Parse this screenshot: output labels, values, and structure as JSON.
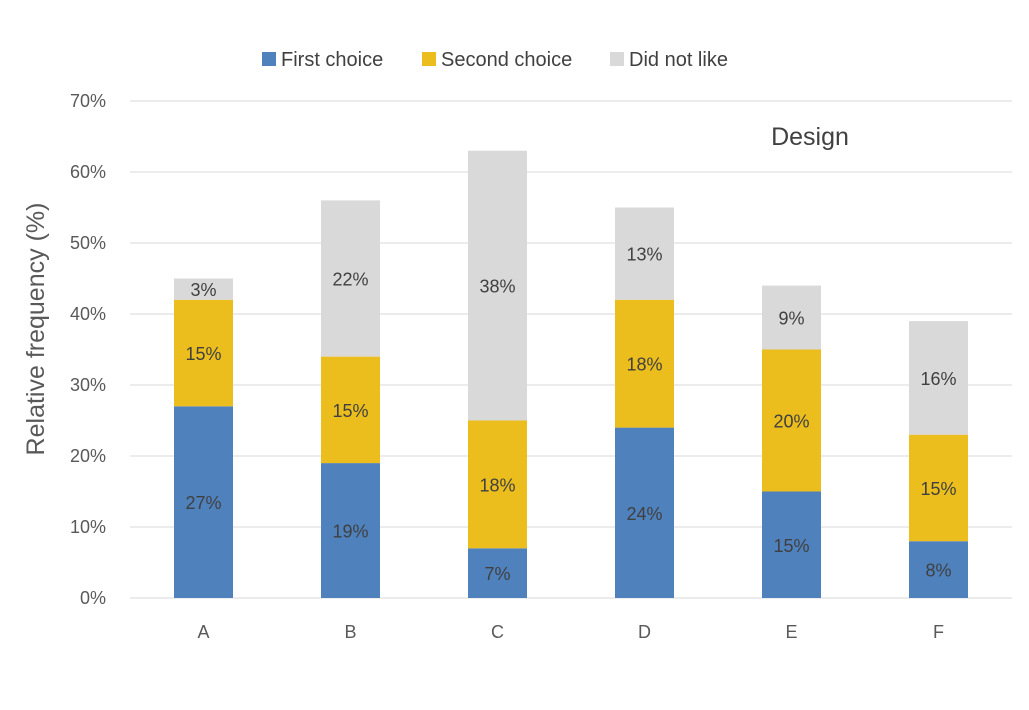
{
  "chart_data": {
    "type": "bar",
    "stacked": true,
    "categories": [
      "A",
      "B",
      "C",
      "D",
      "E",
      "F"
    ],
    "series": [
      {
        "name": "First choice",
        "values": [
          27,
          19,
          7,
          24,
          15,
          8
        ],
        "color": "#4F81BD",
        "label_color": "#404040"
      },
      {
        "name": "Second choice",
        "values": [
          15,
          15,
          18,
          18,
          20,
          15
        ],
        "color": "#EBBE1E",
        "label_color": "#404040"
      },
      {
        "name": "Did not like",
        "values": [
          3,
          22,
          38,
          13,
          9,
          16
        ],
        "color": "#D9D9D9",
        "label_color": "#404040"
      }
    ],
    "value_suffix": "%",
    "ylabel": "Relative frequency (%)",
    "xlabel": "",
    "ylim": [
      0,
      70
    ],
    "yticks": [
      0,
      10,
      20,
      30,
      40,
      50,
      60,
      70
    ],
    "ytick_labels": [
      "0%",
      "10%",
      "20%",
      "30%",
      "40%",
      "50%",
      "60%",
      "70%"
    ],
    "annotation": "Design",
    "grid": true,
    "legend_position": "top-center",
    "gridline_color": "#D9D9D9"
  }
}
